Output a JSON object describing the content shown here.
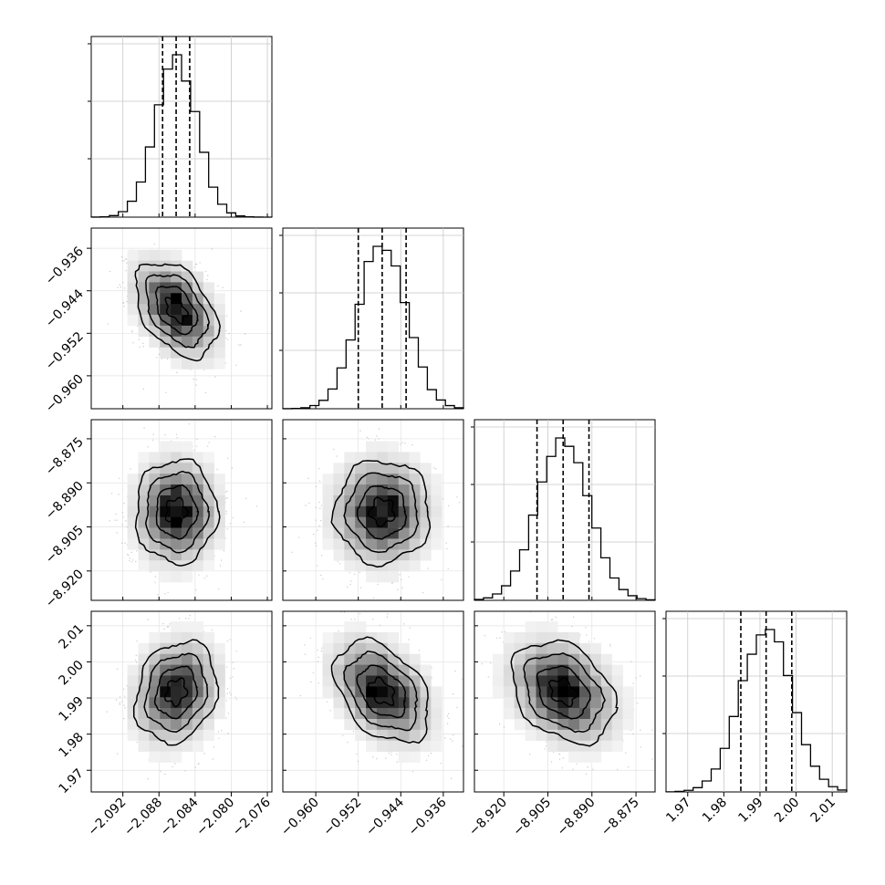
{
  "chart_data": {
    "type": "corner",
    "title": "",
    "parameters": [
      {
        "name": "",
        "range": [
          -2.0955,
          -2.0755
        ],
        "ticks": [
          "−2.092",
          "−2.088",
          "−2.084",
          "−2.080",
          "−2.076"
        ],
        "quantiles": [
          -2.0876,
          -2.0861,
          -2.0846
        ],
        "median": -2.0861,
        "sigma": 0.00225
      },
      {
        "name": "",
        "range": [
          -0.9662,
          -0.9322
        ],
        "ticks": [
          "−0.960",
          "−0.952",
          "−0.944",
          "−0.936"
        ],
        "quantiles": [
          -0.952,
          -0.9475,
          -0.943
        ],
        "median": -0.9475,
        "sigma": 0.0045
      },
      {
        "name": "",
        "range": [
          -8.93,
          -8.8685
        ],
        "ticks": [
          "−8.920",
          "−8.905",
          "−8.890",
          "−8.875"
        ],
        "quantiles": [
          -8.9087,
          -8.8998,
          -8.891
        ],
        "median": -8.8998,
        "sigma": 0.0088
      },
      {
        "name": "",
        "range": [
          1.964,
          2.014
        ],
        "ticks": [
          "1.97",
          "1.98",
          "1.99",
          "2.00",
          "2.01"
        ],
        "quantiles": [
          1.9847,
          1.9917,
          1.9988
        ],
        "median": 1.9917,
        "sigma": 0.007
      }
    ],
    "correlations": [
      {
        "i": 1,
        "j": 0,
        "rho": -0.42
      },
      {
        "i": 2,
        "j": 0,
        "rho": 0.0
      },
      {
        "i": 2,
        "j": 1,
        "rho": 0.0
      },
      {
        "i": 3,
        "j": 0,
        "rho": 0.18
      },
      {
        "i": 3,
        "j": 1,
        "rho": -0.4
      },
      {
        "i": 3,
        "j": 2,
        "rho": -0.3
      }
    ],
    "grid": true,
    "legend": "none"
  }
}
